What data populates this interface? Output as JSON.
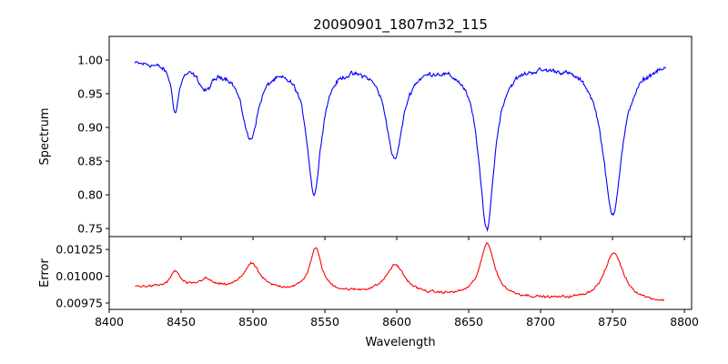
{
  "chart_data": [
    {
      "type": "line",
      "title": "20090901_1807m32_115",
      "xlabel": "",
      "ylabel": "Spectrum",
      "xlim": [
        8400,
        8805
      ],
      "ylim": [
        0.738,
        1.035
      ],
      "xticks": [
        8400,
        8450,
        8500,
        8550,
        8600,
        8650,
        8700,
        8750,
        8800
      ],
      "yticks": [
        0.75,
        0.8,
        0.85,
        0.9,
        0.95,
        1.0
      ],
      "ytick_labels": [
        "0.75",
        "0.80",
        "0.85",
        "0.90",
        "0.95",
        "1.00"
      ],
      "series": [
        {
          "name": "spectrum",
          "color": "#0000ff",
          "x_range": [
            8418,
            8787
          ],
          "continuum": 0.998,
          "noise": 0.006,
          "features": [
            {
              "center": 8446,
              "depth": 0.07,
              "width": 3
            },
            {
              "center": 8467,
              "depth": 0.035,
              "width": 6
            },
            {
              "center": 8498,
              "depth": 0.11,
              "width": 7
            },
            {
              "center": 8542.5,
              "depth": 0.19,
              "width": 6
            },
            {
              "center": 8598.5,
              "depth": 0.14,
              "width": 7
            },
            {
              "center": 8662.5,
              "depth": 0.245,
              "width": 6.5
            },
            {
              "center": 8750,
              "depth": 0.225,
              "width": 8
            }
          ]
        }
      ]
    },
    {
      "type": "line",
      "xlabel": "Wavelength",
      "ylabel": "Error",
      "xlim": [
        8400,
        8805
      ],
      "ylim": [
        0.00969,
        0.01037
      ],
      "xticks": [
        8400,
        8450,
        8500,
        8550,
        8600,
        8650,
        8700,
        8750,
        8800
      ],
      "xtick_labels": [
        "8400",
        "8450",
        "8500",
        "8550",
        "8600",
        "8650",
        "8700",
        "8750",
        "8800"
      ],
      "yticks": [
        0.00975,
        0.01,
        0.01025
      ],
      "ytick_labels": [
        "0.00975",
        "0.01000",
        "0.01025"
      ],
      "series": [
        {
          "name": "error",
          "color": "#ff0000",
          "x_range": [
            8418,
            8786
          ],
          "base_start": 0.0099,
          "base_end": 0.00975,
          "noise": 1.8e-05,
          "features": [
            {
              "center": 8446,
              "height": 0.00015,
              "width": 4
            },
            {
              "center": 8467,
              "height": 8e-05,
              "width": 6
            },
            {
              "center": 8499,
              "height": 0.00024,
              "width": 7
            },
            {
              "center": 8543.5,
              "height": 0.0004,
              "width": 5
            },
            {
              "center": 8599,
              "height": 0.00027,
              "width": 8
            },
            {
              "center": 8663,
              "height": 0.0005,
              "width": 6
            },
            {
              "center": 8751,
              "height": 0.00045,
              "width": 8
            }
          ]
        }
      ]
    }
  ]
}
